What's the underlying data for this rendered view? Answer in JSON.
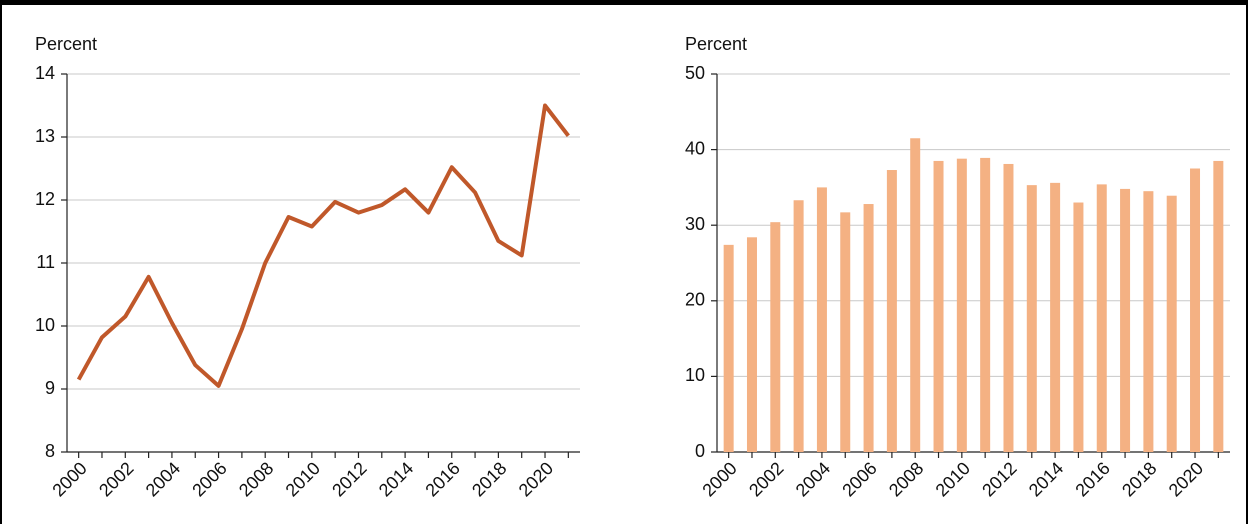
{
  "chart_data": [
    {
      "type": "line",
      "y_label": "Percent",
      "color": "#c0582a",
      "grid": true,
      "categories": [
        "2000",
        null,
        "2002",
        null,
        "2004",
        null,
        "2006",
        null,
        "2008",
        null,
        "2010",
        null,
        "2012",
        null,
        "2014",
        null,
        "2016",
        null,
        "2018",
        null,
        "2020",
        null
      ],
      "values": [
        9.15,
        9.82,
        10.15,
        10.78,
        10.05,
        9.38,
        9.05,
        9.95,
        11.0,
        11.73,
        11.58,
        11.97,
        11.8,
        11.92,
        12.17,
        11.8,
        12.52,
        12.12,
        11.35,
        11.12,
        13.5,
        13.02
      ],
      "ylim": [
        8,
        14
      ],
      "yticks": [
        8,
        9,
        10,
        11,
        12,
        13,
        14
      ]
    },
    {
      "type": "bar",
      "y_label": "Percent",
      "color": "#f4b183",
      "grid": true,
      "categories": [
        "2000",
        null,
        "2002",
        null,
        "2004",
        null,
        "2006",
        null,
        "2008",
        null,
        "2010",
        null,
        "2012",
        null,
        "2014",
        null,
        "2016",
        null,
        "2018",
        null,
        "2020",
        null
      ],
      "values": [
        27.4,
        28.4,
        30.4,
        33.3,
        35.0,
        31.7,
        32.8,
        37.3,
        41.5,
        38.5,
        38.8,
        38.9,
        38.1,
        35.3,
        35.6,
        33.0,
        35.4,
        34.8,
        34.5,
        33.9,
        37.5,
        38.5
      ],
      "ylim": [
        0,
        50
      ],
      "yticks": [
        0,
        10,
        20,
        30,
        40,
        50
      ]
    }
  ]
}
